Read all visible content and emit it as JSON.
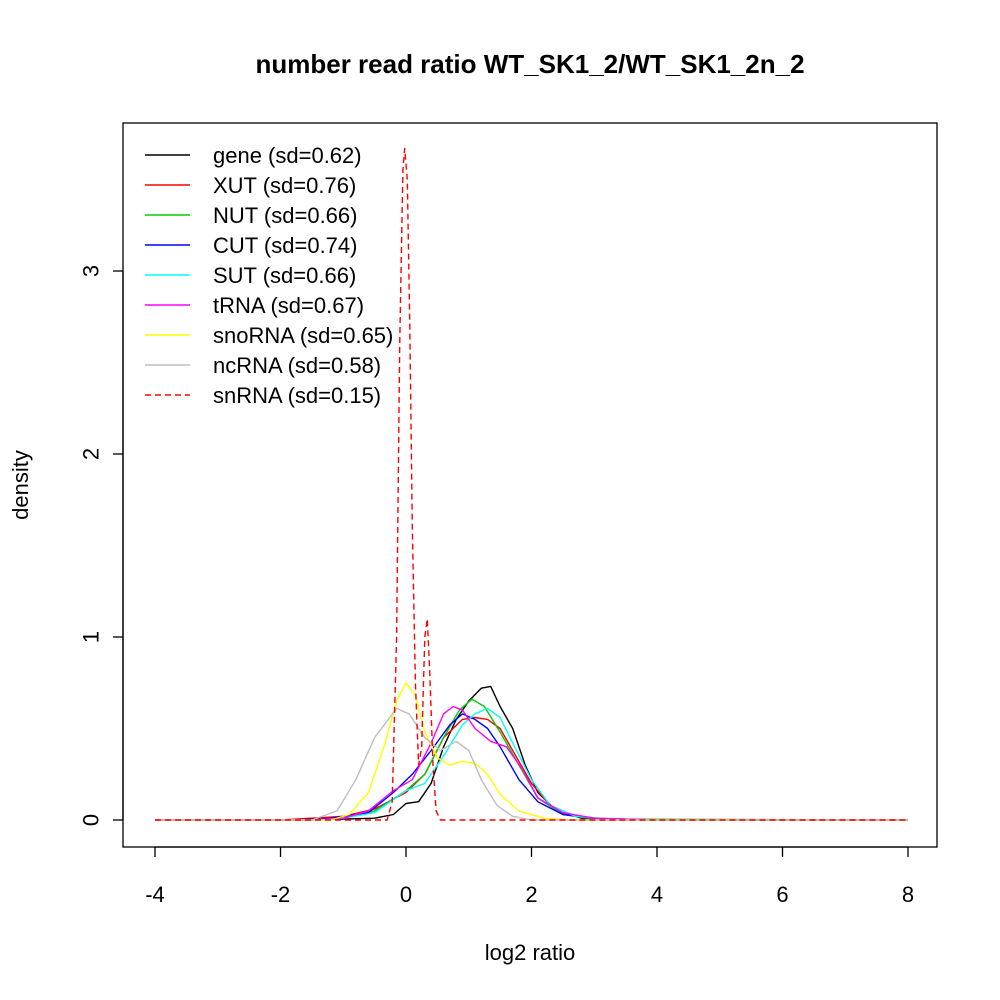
{
  "chart_data": {
    "type": "line",
    "title": "number read ratio WT_SK1_2/WT_SK1_2n_2",
    "xlabel": "log2 ratio",
    "ylabel": "density",
    "xlim": [
      -4,
      8
    ],
    "ylim": [
      0,
      3.7
    ],
    "x_ticks": [
      -4,
      -2,
      0,
      2,
      4,
      6,
      8
    ],
    "x_tick_labels": [
      "-4",
      "-2",
      "0",
      "2",
      "4",
      "6",
      "8"
    ],
    "y_ticks": [
      0,
      1,
      2,
      3
    ],
    "y_tick_labels": [
      "0",
      "1",
      "2",
      "3"
    ],
    "legend_position": "top-left",
    "grid": false,
    "series": [
      {
        "name": "gene (sd=0.62)",
        "color": "#000000",
        "dash": "solid",
        "points": [
          [
            -4,
            0
          ],
          [
            -1.8,
            0
          ],
          [
            -1,
            0.005
          ],
          [
            -0.5,
            0.01
          ],
          [
            -0.2,
            0.03
          ],
          [
            0,
            0.09
          ],
          [
            0.2,
            0.1
          ],
          [
            0.4,
            0.2
          ],
          [
            0.6,
            0.4
          ],
          [
            0.8,
            0.55
          ],
          [
            1,
            0.65
          ],
          [
            1.2,
            0.72
          ],
          [
            1.35,
            0.73
          ],
          [
            1.5,
            0.62
          ],
          [
            1.7,
            0.5
          ],
          [
            1.9,
            0.3
          ],
          [
            2.1,
            0.15
          ],
          [
            2.4,
            0.05
          ],
          [
            2.8,
            0.01
          ],
          [
            3.2,
            0
          ],
          [
            8,
            0
          ]
        ]
      },
      {
        "name": "XUT (sd=0.76)",
        "color": "#ff0000",
        "dash": "solid",
        "points": [
          [
            -4,
            0
          ],
          [
            -2,
            0
          ],
          [
            -1.5,
            0.01
          ],
          [
            -1,
            0.02
          ],
          [
            -0.5,
            0.06
          ],
          [
            0,
            0.15
          ],
          [
            0.3,
            0.25
          ],
          [
            0.6,
            0.45
          ],
          [
            0.9,
            0.55
          ],
          [
            1.1,
            0.56
          ],
          [
            1.3,
            0.55
          ],
          [
            1.5,
            0.5
          ],
          [
            1.7,
            0.38
          ],
          [
            2,
            0.2
          ],
          [
            2.3,
            0.08
          ],
          [
            2.7,
            0.02
          ],
          [
            3.2,
            0.005
          ],
          [
            4,
            0
          ],
          [
            8,
            0
          ]
        ]
      },
      {
        "name": "NUT (sd=0.66)",
        "color": "#00cc00",
        "dash": "solid",
        "points": [
          [
            -4,
            0
          ],
          [
            -1.5,
            0
          ],
          [
            -1,
            0.01
          ],
          [
            -0.5,
            0.05
          ],
          [
            0,
            0.16
          ],
          [
            0.3,
            0.25
          ],
          [
            0.6,
            0.45
          ],
          [
            0.85,
            0.6
          ],
          [
            1.05,
            0.66
          ],
          [
            1.25,
            0.62
          ],
          [
            1.5,
            0.48
          ],
          [
            1.8,
            0.3
          ],
          [
            2.1,
            0.12
          ],
          [
            2.5,
            0.03
          ],
          [
            3,
            0.005
          ],
          [
            8,
            0
          ]
        ]
      },
      {
        "name": "CUT (sd=0.74)",
        "color": "#0000ff",
        "dash": "solid",
        "points": [
          [
            -4,
            0
          ],
          [
            -1.8,
            0
          ],
          [
            -1.2,
            0.01
          ],
          [
            -0.6,
            0.04
          ],
          [
            -0.2,
            0.15
          ],
          [
            0.1,
            0.25
          ],
          [
            0.4,
            0.38
          ],
          [
            0.7,
            0.52
          ],
          [
            0.9,
            0.58
          ],
          [
            1.1,
            0.55
          ],
          [
            1.3,
            0.5
          ],
          [
            1.5,
            0.4
          ],
          [
            1.8,
            0.22
          ],
          [
            2.1,
            0.1
          ],
          [
            2.5,
            0.03
          ],
          [
            3,
            0.01
          ],
          [
            4,
            0
          ],
          [
            8,
            0
          ]
        ]
      },
      {
        "name": "SUT (sd=0.66)",
        "color": "#00ffff",
        "dash": "solid",
        "points": [
          [
            -4,
            0
          ],
          [
            -1.5,
            0
          ],
          [
            -1,
            0.01
          ],
          [
            -0.5,
            0.04
          ],
          [
            0,
            0.16
          ],
          [
            0.3,
            0.2
          ],
          [
            0.6,
            0.35
          ],
          [
            0.9,
            0.52
          ],
          [
            1.1,
            0.58
          ],
          [
            1.3,
            0.61
          ],
          [
            1.5,
            0.56
          ],
          [
            1.7,
            0.42
          ],
          [
            2,
            0.22
          ],
          [
            2.3,
            0.08
          ],
          [
            2.7,
            0.02
          ],
          [
            3.5,
            0
          ],
          [
            8,
            0
          ]
        ]
      },
      {
        "name": "tRNA (sd=0.67)",
        "color": "#ff00ff",
        "dash": "solid",
        "points": [
          [
            -4,
            0
          ],
          [
            -1.5,
            0
          ],
          [
            -1,
            0.01
          ],
          [
            -0.6,
            0.05
          ],
          [
            -0.2,
            0.16
          ],
          [
            0.1,
            0.22
          ],
          [
            0.4,
            0.42
          ],
          [
            0.6,
            0.58
          ],
          [
            0.75,
            0.62
          ],
          [
            0.9,
            0.6
          ],
          [
            1.1,
            0.5
          ],
          [
            1.35,
            0.43
          ],
          [
            1.6,
            0.4
          ],
          [
            1.85,
            0.28
          ],
          [
            2.1,
            0.12
          ],
          [
            2.5,
            0.04
          ],
          [
            3,
            0.01
          ],
          [
            4,
            0
          ],
          [
            8,
            0
          ]
        ]
      },
      {
        "name": "snoRNA (sd=0.65)",
        "color": "#ffff00",
        "dash": "solid",
        "points": [
          [
            -4,
            0
          ],
          [
            -1.2,
            0
          ],
          [
            -0.9,
            0.03
          ],
          [
            -0.6,
            0.15
          ],
          [
            -0.35,
            0.4
          ],
          [
            -0.15,
            0.65
          ],
          [
            0,
            0.75
          ],
          [
            0.15,
            0.68
          ],
          [
            0.3,
            0.48
          ],
          [
            0.5,
            0.34
          ],
          [
            0.7,
            0.3
          ],
          [
            0.9,
            0.32
          ],
          [
            1.1,
            0.31
          ],
          [
            1.3,
            0.25
          ],
          [
            1.5,
            0.14
          ],
          [
            1.8,
            0.05
          ],
          [
            2.2,
            0.01
          ],
          [
            2.6,
            0
          ],
          [
            8,
            0
          ]
        ]
      },
      {
        "name": "ncRNA (sd=0.58)",
        "color": "#bebebe",
        "dash": "solid",
        "points": [
          [
            -4,
            0
          ],
          [
            -1.5,
            0
          ],
          [
            -1.1,
            0.05
          ],
          [
            -0.8,
            0.22
          ],
          [
            -0.5,
            0.45
          ],
          [
            -0.15,
            0.61
          ],
          [
            0.05,
            0.58
          ],
          [
            0.3,
            0.45
          ],
          [
            0.55,
            0.38
          ],
          [
            0.8,
            0.43
          ],
          [
            1.0,
            0.38
          ],
          [
            1.2,
            0.22
          ],
          [
            1.45,
            0.08
          ],
          [
            1.7,
            0.02
          ],
          [
            2.0,
            0
          ],
          [
            8,
            0
          ]
        ]
      },
      {
        "name": "snRNA (sd=0.15)",
        "color": "#ff0000",
        "dash": "dashed",
        "points": [
          [
            -4,
            0
          ],
          [
            -0.3,
            0
          ],
          [
            -0.22,
            0.1
          ],
          [
            -0.15,
            1.0
          ],
          [
            -0.1,
            2.6
          ],
          [
            -0.05,
            3.55
          ],
          [
            -0.02,
            3.67
          ],
          [
            0.02,
            3.5
          ],
          [
            0.06,
            2.7
          ],
          [
            0.1,
            1.6
          ],
          [
            0.15,
            0.75
          ],
          [
            0.2,
            0.3
          ],
          [
            0.25,
            0.4
          ],
          [
            0.3,
            1.0
          ],
          [
            0.34,
            1.1
          ],
          [
            0.38,
            0.8
          ],
          [
            0.43,
            0.3
          ],
          [
            0.48,
            0.05
          ],
          [
            0.55,
            0
          ],
          [
            8,
            0
          ]
        ]
      }
    ]
  }
}
